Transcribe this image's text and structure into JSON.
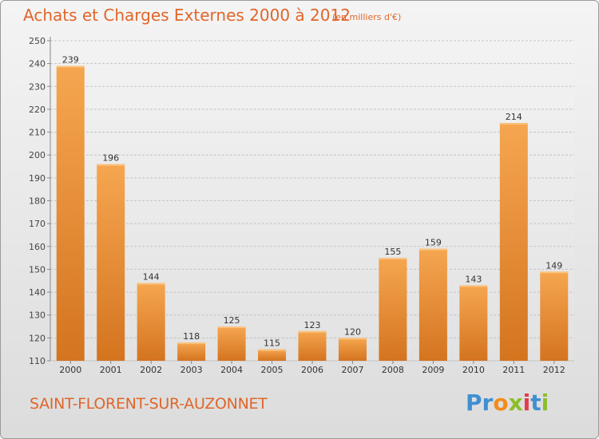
{
  "header": {
    "title": "Achats et Charges Externes 2000 à 2012",
    "unit": "(en milliers d'€)"
  },
  "footer": {
    "city": "SAINT-FLORENT-SUR-AUZONNET",
    "logo": [
      "Pr",
      "o",
      "x",
      "i",
      "t",
      "i"
    ]
  },
  "colors": {
    "bar_top": "#f6a650",
    "bar_bottom": "#d4741f",
    "text_accent": "#e0662a"
  },
  "chart_data": {
    "type": "bar",
    "title": "Achats et Charges Externes 2000 à 2012",
    "subtitle": "(en milliers d'€)",
    "categories": [
      "2000",
      "2001",
      "2002",
      "2003",
      "2004",
      "2005",
      "2006",
      "2007",
      "2008",
      "2009",
      "2010",
      "2011",
      "2012"
    ],
    "values": [
      239,
      196,
      144,
      118,
      125,
      115,
      123,
      120,
      155,
      159,
      143,
      214,
      149
    ],
    "ylim": [
      110,
      250
    ],
    "yticks": [
      110,
      120,
      130,
      140,
      150,
      160,
      170,
      180,
      190,
      200,
      210,
      220,
      230,
      240,
      250
    ],
    "grid": true,
    "legend": "none"
  }
}
